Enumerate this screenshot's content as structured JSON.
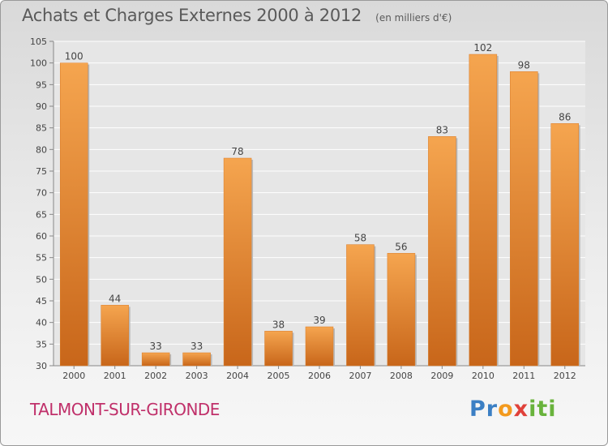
{
  "header": {
    "title": "Achats et Charges Externes 2000 à 2012",
    "unit": "(en milliers d'€)"
  },
  "footer": {
    "place": "TALMONT-SUR-GIRONDE",
    "logo_text": "Proxiti"
  },
  "colors": {
    "bar_top": "#f5a54f",
    "bar_bottom": "#c8661a",
    "title_text": "#5a5a5a",
    "place_text": "#c0306a"
  },
  "chart_data": {
    "type": "bar",
    "title": "Achats et Charges Externes 2000 à 2012",
    "subtitle": "(en milliers d'€)",
    "categories": [
      "2000",
      "2001",
      "2002",
      "2003",
      "2004",
      "2005",
      "2006",
      "2007",
      "2008",
      "2009",
      "2010",
      "2011",
      "2012"
    ],
    "values": [
      100,
      44,
      33,
      33,
      78,
      38,
      39,
      58,
      56,
      83,
      102,
      98,
      86
    ],
    "ylim": [
      30,
      105
    ],
    "yticks": [
      30,
      35,
      40,
      45,
      50,
      55,
      60,
      65,
      70,
      75,
      80,
      85,
      90,
      95,
      100,
      105
    ],
    "grid": true,
    "data_labels": true
  }
}
